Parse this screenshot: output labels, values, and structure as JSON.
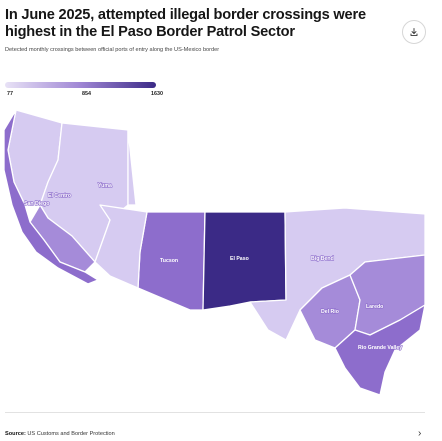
{
  "header": {
    "title": "In June 2025, attempted illegal border crossings were highest in the El Paso Border Patrol Sector",
    "subtitle": "Detected monthly crossings between official ports of entry along the US-Mexico border"
  },
  "legend": {
    "min": "77",
    "mid": "854",
    "max": "1630"
  },
  "icons": {
    "download": "download-icon",
    "chevron": "chevron-right-icon"
  },
  "colors": {
    "light": "#d6cbf1",
    "light_mid": "#c0b0e9",
    "mid": "#a58bd9",
    "mid_dark": "#8d6dcc",
    "dark": "#3b2a86"
  },
  "sectors": [
    {
      "name": "San Diego",
      "level": "mid_dark"
    },
    {
      "name": "El Centro",
      "level": "mid"
    },
    {
      "name": "Yuma",
      "level": "light"
    },
    {
      "name": "Tucson",
      "level": "mid_dark"
    },
    {
      "name": "El Paso",
      "level": "dark"
    },
    {
      "name": "Big Bend",
      "level": "light"
    },
    {
      "name": "Del Rio",
      "level": "mid"
    },
    {
      "name": "Laredo",
      "level": "mid"
    },
    {
      "name": "Rio Grande Valley",
      "level": "mid_dark"
    }
  ],
  "footer": {
    "source_label": "Source:",
    "source_text": "US Customs and Border Protection"
  }
}
